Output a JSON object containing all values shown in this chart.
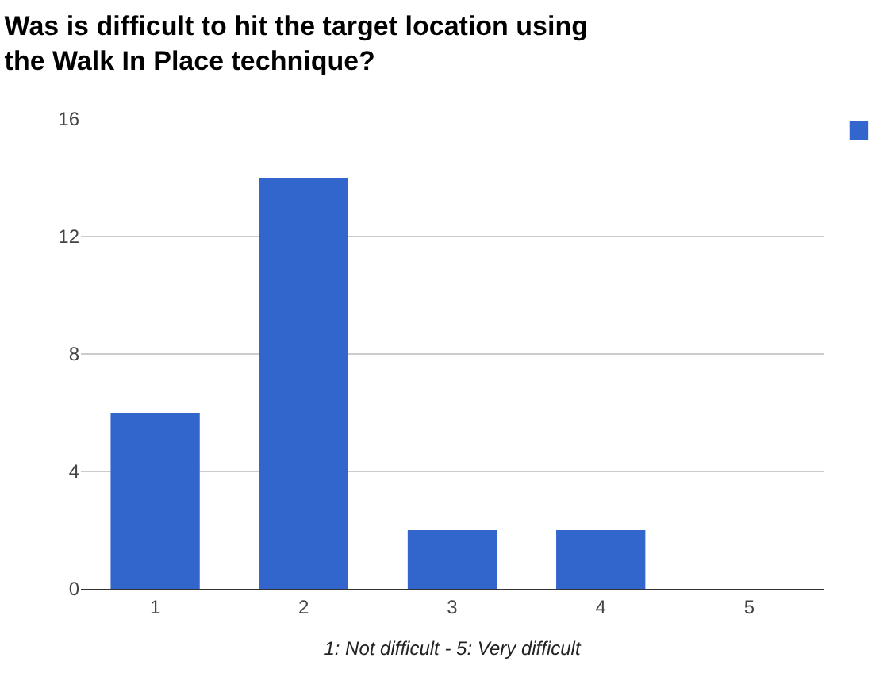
{
  "chart_data": {
    "type": "bar",
    "title": "Was is difficult to hit the target location using\nthe Walk In Place technique?",
    "xlabel": "1: Not difficult - 5: Very difficult",
    "categories": [
      "1",
      "2",
      "3",
      "4",
      "5"
    ],
    "series": [
      {
        "color": "#3366cc",
        "values": [
          6,
          14,
          2,
          2,
          0
        ]
      }
    ],
    "ylim": [
      0,
      16
    ],
    "yticks": [
      0,
      4,
      8,
      12,
      16
    ],
    "grid": "y"
  }
}
